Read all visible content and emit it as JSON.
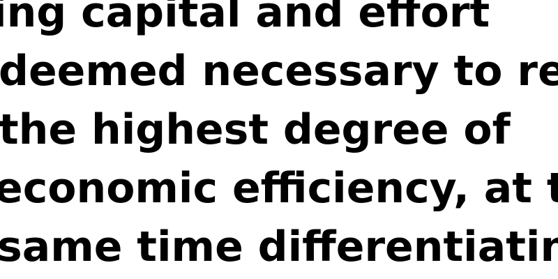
{
  "text": {
    "lines": [
      "ing capital and effort",
      "deemed necessary to rea",
      "the highest degree of",
      "economic efficiency, at th",
      "same time differentiating"
    ]
  }
}
